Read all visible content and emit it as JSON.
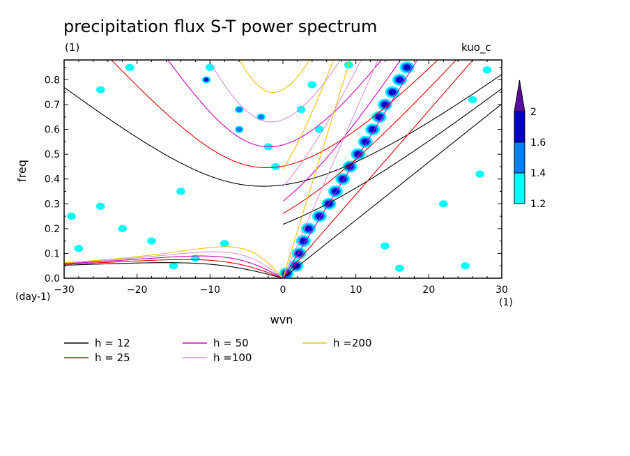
{
  "chart_data": {
    "type": "heatmap",
    "title": "precipitation flux S-T power spectrum",
    "subtitle_left": "(1)",
    "subtitle_right": "kuo_c",
    "xlabel": "wvn",
    "ylabel": "freq",
    "xunit": "(1)",
    "yunit": "(day-1)",
    "xlim": [
      -30,
      30
    ],
    "ylim": [
      0,
      0.88
    ],
    "xticks": [
      -30,
      -20,
      -10,
      0,
      10,
      20,
      30
    ],
    "yticks": [
      0.0,
      0.1,
      0.2,
      0.3,
      0.4,
      0.5,
      0.6,
      0.7,
      0.8
    ],
    "grid": false,
    "contour_levels": [
      1.2,
      1.4,
      1.6,
      2
    ],
    "colorbar": {
      "labels": [
        "1.2",
        "1.4",
        "1.6",
        "2"
      ],
      "colors": [
        "#00ffff",
        "#0080ff",
        "#0000c8",
        "#5a0ca0"
      ]
    },
    "dispersion_curves": [
      {
        "label": "h = 12",
        "h": 12,
        "color": "#000000"
      },
      {
        "label": "h = 25",
        "h": 25,
        "color": "#e00000"
      },
      {
        "label": "h = 50",
        "h": 50,
        "color": "#d000c0"
      },
      {
        "label": "h =100",
        "h": 100,
        "color": "#d890d8"
      },
      {
        "label": "h =200",
        "h": 200,
        "color": "#f0c000"
      }
    ],
    "ridge_peaks": [
      {
        "wvn": 0.5,
        "freq": 0.02,
        "value": 2.0
      },
      {
        "wvn": 1.8,
        "freq": 0.05,
        "value": 1.8
      },
      {
        "wvn": 2.2,
        "freq": 0.1,
        "value": 1.7
      },
      {
        "wvn": 2.8,
        "freq": 0.15,
        "value": 1.8
      },
      {
        "wvn": 3.5,
        "freq": 0.2,
        "value": 1.7
      },
      {
        "wvn": 5.0,
        "freq": 0.25,
        "value": 1.9
      },
      {
        "wvn": 6.3,
        "freq": 0.3,
        "value": 1.9
      },
      {
        "wvn": 7.2,
        "freq": 0.35,
        "value": 1.9
      },
      {
        "wvn": 8.2,
        "freq": 0.4,
        "value": 1.9
      },
      {
        "wvn": 9.2,
        "freq": 0.45,
        "value": 1.9
      },
      {
        "wvn": 10.3,
        "freq": 0.5,
        "value": 1.9
      },
      {
        "wvn": 11.3,
        "freq": 0.55,
        "value": 1.9
      },
      {
        "wvn": 12.3,
        "freq": 0.6,
        "value": 1.9
      },
      {
        "wvn": 13.2,
        "freq": 0.65,
        "value": 1.9
      },
      {
        "wvn": 14.0,
        "freq": 0.7,
        "value": 1.9
      },
      {
        "wvn": 15.0,
        "freq": 0.75,
        "value": 1.9
      },
      {
        "wvn": 16.0,
        "freq": 0.8,
        "value": 1.9
      },
      {
        "wvn": 17.0,
        "freq": 0.85,
        "value": 1.9
      }
    ],
    "scattered_blobs": [
      {
        "wvn": -10.5,
        "freq": 0.8,
        "value": 1.7
      },
      {
        "wvn": -10.0,
        "freq": 0.85,
        "value": 1.3
      },
      {
        "wvn": -6.0,
        "freq": 0.68,
        "value": 1.4
      },
      {
        "wvn": -3.0,
        "freq": 0.65,
        "value": 1.4
      },
      {
        "wvn": -6.0,
        "freq": 0.6,
        "value": 1.4
      },
      {
        "wvn": -2.0,
        "freq": 0.53,
        "value": 1.3
      },
      {
        "wvn": -1.0,
        "freq": 0.45,
        "value": 1.3
      },
      {
        "wvn": -25.0,
        "freq": 0.76,
        "value": 1.3
      },
      {
        "wvn": -21.0,
        "freq": 0.85,
        "value": 1.3
      },
      {
        "wvn": -28.0,
        "freq": 0.12,
        "value": 1.3
      },
      {
        "wvn": -29.0,
        "freq": 0.25,
        "value": 1.3
      },
      {
        "wvn": -25.0,
        "freq": 0.29,
        "value": 1.3
      },
      {
        "wvn": -22.0,
        "freq": 0.2,
        "value": 1.3
      },
      {
        "wvn": -18.0,
        "freq": 0.15,
        "value": 1.3
      },
      {
        "wvn": -15.0,
        "freq": 0.05,
        "value": 1.3
      },
      {
        "wvn": -8.0,
        "freq": 0.14,
        "value": 1.3
      },
      {
        "wvn": -14.0,
        "freq": 0.35,
        "value": 1.3
      },
      {
        "wvn": 2.5,
        "freq": 0.68,
        "value": 1.3
      },
      {
        "wvn": 5.0,
        "freq": 0.6,
        "value": 1.3
      },
      {
        "wvn": 14.0,
        "freq": 0.13,
        "value": 1.3
      },
      {
        "wvn": 16.0,
        "freq": 0.04,
        "value": 1.3
      },
      {
        "wvn": 25.0,
        "freq": 0.05,
        "value": 1.3
      },
      {
        "wvn": 22.0,
        "freq": 0.3,
        "value": 1.3
      },
      {
        "wvn": 27.0,
        "freq": 0.42,
        "value": 1.3
      },
      {
        "wvn": 26.0,
        "freq": 0.72,
        "value": 1.3
      },
      {
        "wvn": 28.0,
        "freq": 0.84,
        "value": 1.3
      },
      {
        "wvn": 4.0,
        "freq": 0.78,
        "value": 1.3
      },
      {
        "wvn": 9.0,
        "freq": 0.86,
        "value": 1.3
      },
      {
        "wvn": -12.0,
        "freq": 0.08,
        "value": 1.3
      }
    ]
  }
}
